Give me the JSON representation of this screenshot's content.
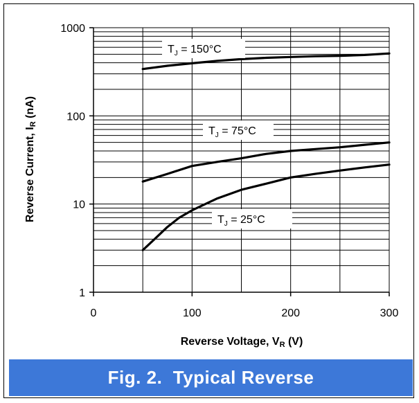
{
  "caption": "Fig. 2.  Typical Reverse",
  "chart_data": {
    "type": "line",
    "title": "",
    "xlabel": {
      "main": "Reverse Voltage, V",
      "sub": "R",
      "tail": " (V)"
    },
    "ylabel": {
      "main": "Reverse Current, I",
      "sub": "R",
      "tail": " (nA)"
    },
    "xlim": [
      0,
      300
    ],
    "ylim": [
      1,
      1000
    ],
    "yscale": "log",
    "grid": true,
    "x_ticks": [
      "0",
      "100",
      "200",
      "300"
    ],
    "y_ticks": [
      "1",
      "10",
      "100",
      "1000"
    ],
    "series": [
      {
        "label": {
          "main": "T",
          "sub": "J",
          "tail": " = 150°C"
        },
        "x": [
          50,
          75,
          100,
          125,
          150,
          175,
          200,
          225,
          250,
          275,
          300
        ],
        "y": [
          340,
          370,
          395,
          420,
          440,
          455,
          465,
          475,
          480,
          490,
          510
        ]
      },
      {
        "label": {
          "main": "T",
          "sub": "J",
          "tail": " = 75°C"
        },
        "x": [
          50,
          75,
          100,
          125,
          150,
          175,
          200,
          225,
          250,
          275,
          300
        ],
        "y": [
          18,
          22,
          27,
          30,
          33,
          37,
          40,
          42,
          44,
          47,
          50
        ]
      },
      {
        "label": {
          "main": "T",
          "sub": "J",
          "tail": " = 25°C"
        },
        "x": [
          50,
          62,
          75,
          87,
          100,
          125,
          150,
          175,
          200,
          225,
          250,
          275,
          300
        ],
        "y": [
          3,
          4,
          5.5,
          7,
          8.5,
          11.5,
          14.5,
          17,
          20,
          22,
          24,
          26,
          28
        ]
      }
    ],
    "colors": {
      "line": "#000000",
      "grid": "#000000",
      "caption_bg": "#3d78d8",
      "caption_text": "#ffffff"
    }
  }
}
